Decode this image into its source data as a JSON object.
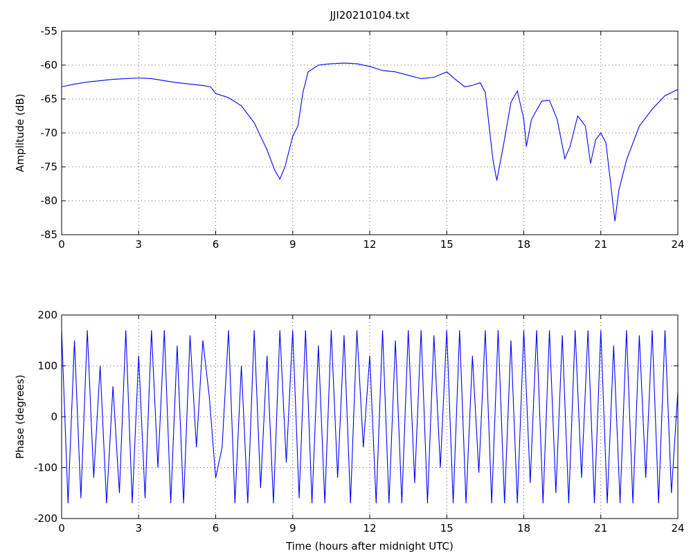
{
  "chart_data": [
    {
      "type": "line",
      "title": "JJI20210104.txt",
      "y_label": "Amplitude (dB)",
      "color": "#0000ff",
      "grid": true,
      "xlim": [
        0,
        24
      ],
      "xticks": [
        0,
        3,
        6,
        9,
        12,
        15,
        18,
        21,
        24
      ],
      "ylim": [
        -85,
        -55
      ],
      "yticks": [
        -85,
        -80,
        -75,
        -70,
        -65,
        -60,
        -55
      ],
      "x": [
        0,
        0.5,
        1,
        1.5,
        2,
        2.5,
        3,
        3.5,
        4,
        4.5,
        5,
        5.5,
        5.8,
        6,
        6.5,
        7,
        7.5,
        8,
        8.3,
        8.5,
        8.7,
        9,
        9.2,
        9.4,
        9.6,
        10,
        10.5,
        11,
        11.5,
        12,
        12.5,
        13,
        13.5,
        14,
        14.5,
        15,
        15.3,
        15.7,
        16,
        16.3,
        16.5,
        16.8,
        16.95,
        17.2,
        17.5,
        17.75,
        18,
        18.1,
        18.3,
        18.7,
        19,
        19.3,
        19.6,
        19.8,
        20.1,
        20.4,
        20.6,
        20.8,
        21,
        21.2,
        21.4,
        21.55,
        21.7,
        22,
        22.5,
        23,
        23.5,
        24
      ],
      "values": [
        -63.2,
        -62.8,
        -62.5,
        -62.3,
        -62.1,
        -62.0,
        -61.9,
        -62.0,
        -62.3,
        -62.6,
        -62.8,
        -63.0,
        -63.2,
        -64.2,
        -64.8,
        -66.0,
        -68.5,
        -72.5,
        -75.5,
        -76.8,
        -75.0,
        -70.5,
        -69.0,
        -64.0,
        -61.0,
        -60.0,
        -59.8,
        -59.7,
        -59.8,
        -60.2,
        -60.8,
        -61.0,
        -61.5,
        -62.0,
        -61.8,
        -61.0,
        -62.0,
        -63.2,
        -63.0,
        -62.6,
        -64.0,
        -74.0,
        -77.0,
        -72.0,
        -65.5,
        -63.8,
        -68.0,
        -72.0,
        -68.0,
        -65.3,
        -65.2,
        -68.0,
        -73.8,
        -72.0,
        -67.5,
        -69.0,
        -74.5,
        -71.0,
        -70.0,
        -71.5,
        -78.0,
        -83.0,
        -78.5,
        -74.0,
        -69.0,
        -66.5,
        -64.5,
        -63.6
      ]
    },
    {
      "type": "line",
      "x_label": "Time (hours after midnight UTC)",
      "y_label": "Phase (degrees)",
      "color": "#0000ff",
      "grid": true,
      "xlim": [
        0,
        24
      ],
      "xticks": [
        0,
        3,
        6,
        9,
        12,
        15,
        18,
        21,
        24
      ],
      "ylim": [
        -200,
        200
      ],
      "yticks": [
        -200,
        -100,
        0,
        100,
        200
      ],
      "x": [
        0,
        0.25,
        0.5,
        0.75,
        1,
        1.25,
        1.5,
        1.75,
        2,
        2.25,
        2.5,
        2.75,
        3,
        3.25,
        3.5,
        3.75,
        4,
        4.25,
        4.5,
        4.75,
        5,
        5.25,
        5.5,
        5.75,
        6,
        6.25,
        6.5,
        6.75,
        7,
        7.25,
        7.5,
        7.75,
        8,
        8.25,
        8.5,
        8.75,
        9,
        9.25,
        9.5,
        9.75,
        10,
        10.25,
        10.5,
        10.75,
        11,
        11.25,
        11.5,
        11.75,
        12,
        12.25,
        12.5,
        12.75,
        13,
        13.25,
        13.5,
        13.75,
        14,
        14.25,
        14.5,
        14.75,
        15,
        15.25,
        15.5,
        15.75,
        16,
        16.25,
        16.5,
        16.75,
        17,
        17.25,
        17.5,
        17.75,
        18,
        18.25,
        18.5,
        18.75,
        19,
        19.25,
        19.5,
        19.75,
        20,
        20.25,
        20.5,
        20.75,
        21,
        21.25,
        21.5,
        21.75,
        22,
        22.25,
        22.5,
        22.75,
        23,
        23.25,
        23.5,
        23.75,
        24
      ],
      "values": [
        170,
        -170,
        150,
        -160,
        170,
        -120,
        100,
        -170,
        60,
        -150,
        170,
        -170,
        120,
        -160,
        170,
        -100,
        170,
        -170,
        140,
        -170,
        160,
        -60,
        150,
        40,
        -120,
        -60,
        170,
        -170,
        100,
        -170,
        170,
        -140,
        120,
        -170,
        170,
        -90,
        170,
        -160,
        170,
        -170,
        140,
        -170,
        170,
        -120,
        160,
        -170,
        170,
        -60,
        120,
        -170,
        170,
        -170,
        150,
        -170,
        170,
        -130,
        170,
        -170,
        160,
        -100,
        170,
        -170,
        170,
        -170,
        120,
        -110,
        170,
        -170,
        170,
        -170,
        150,
        -170,
        170,
        -130,
        170,
        -170,
        170,
        -150,
        160,
        -170,
        170,
        -120,
        170,
        -170,
        170,
        -170,
        140,
        -170,
        170,
        -170,
        160,
        -120,
        170,
        -170,
        170,
        -150,
        50
      ]
    }
  ]
}
